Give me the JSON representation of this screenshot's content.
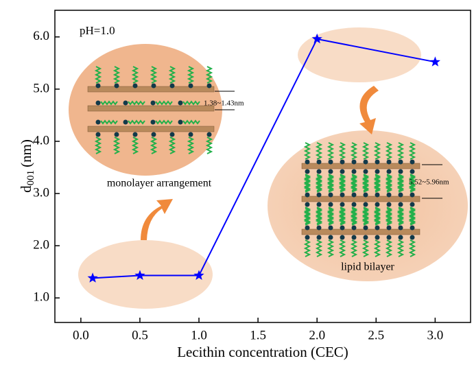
{
  "chart_data": {
    "type": "line",
    "xlabel": "Lecithin concentration (CEC)",
    "ylabel": "d",
    "ylabel_sub": "001",
    "ylabel_unit": "(nm)",
    "x": [
      0.1,
      0.5,
      1.0,
      2.0,
      3.0
    ],
    "series": [
      {
        "name": "d001",
        "color": "#0000ff",
        "values": [
          1.38,
          1.43,
          1.43,
          5.96,
          5.52
        ]
      }
    ],
    "xlim": [
      -0.22,
      3.3
    ],
    "xticks": [
      {
        "value": 0,
        "label": "0.0"
      },
      0.5,
      {
        "value": 1,
        "label": "1.0"
      },
      1.5,
      {
        "value": 2,
        "label": "2.0"
      },
      2.5,
      {
        "value": 3,
        "label": "3.0"
      }
    ],
    "ylim": [
      0.53,
      6.51
    ],
    "yticks": [
      {
        "value": 1,
        "label": "1.0"
      },
      {
        "value": 2,
        "label": "2.0"
      },
      {
        "value": 3,
        "label": "3.0"
      },
      {
        "value": 4,
        "label": "4.0"
      },
      {
        "value": 5,
        "label": "5.0"
      },
      {
        "value": 6,
        "label": "6.0"
      }
    ],
    "annotations": {
      "ph": "pH=1.0",
      "monolayer": "monolayer arrangement",
      "bilayer": "lipid bilayer",
      "mono_range": "1.38~1.43nm",
      "bi_range": "5.52~5.96nm"
    }
  }
}
